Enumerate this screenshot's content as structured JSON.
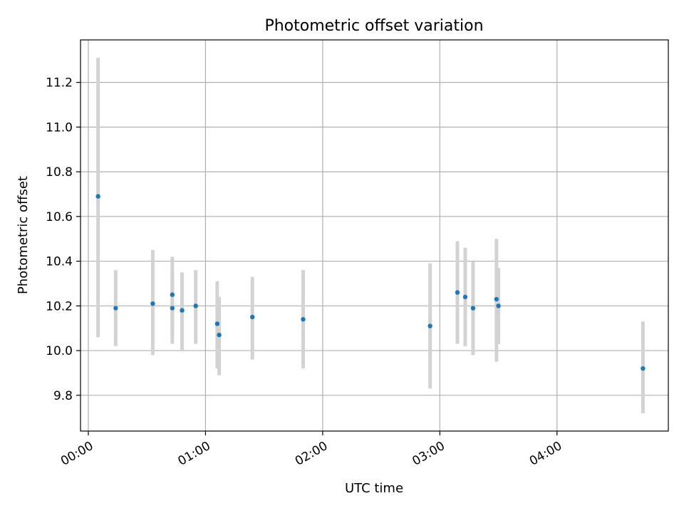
{
  "chart_data": {
    "type": "scatter",
    "title": "Photometric offset variation",
    "xlabel": "UTC time",
    "ylabel": "Photometric offset",
    "x_unit": "UTC hh:mm",
    "xlim": [
      "-00:04",
      "04:57"
    ],
    "ylim": [
      9.64,
      11.39
    ],
    "x_ticks": [
      "00:00",
      "01:00",
      "02:00",
      "03:00",
      "04:00"
    ],
    "y_ticks": [
      "9.8",
      "10.0",
      "10.2",
      "10.4",
      "10.6",
      "10.8",
      "11.0",
      "11.2"
    ],
    "grid": true,
    "marker_color": "#1f77b4",
    "errorbar_color": "#d3d3d3",
    "points": [
      {
        "x": "00:05",
        "y": 10.69,
        "ylow": 10.06,
        "yhigh": 11.31
      },
      {
        "x": "00:14",
        "y": 10.19,
        "ylow": 10.02,
        "yhigh": 10.36
      },
      {
        "x": "00:33",
        "y": 10.21,
        "ylow": 9.98,
        "yhigh": 10.45
      },
      {
        "x": "00:43",
        "y": 10.25,
        "ylow": 10.07,
        "yhigh": 10.42
      },
      {
        "x": "00:43",
        "y": 10.19,
        "ylow": 10.03,
        "yhigh": 10.34
      },
      {
        "x": "00:48",
        "y": 10.18,
        "ylow": 10.0,
        "yhigh": 10.35
      },
      {
        "x": "00:55",
        "y": 10.2,
        "ylow": 10.03,
        "yhigh": 10.36
      },
      {
        "x": "01:06",
        "y": 10.12,
        "ylow": 9.92,
        "yhigh": 10.31
      },
      {
        "x": "01:07",
        "y": 10.07,
        "ylow": 9.89,
        "yhigh": 10.24
      },
      {
        "x": "01:24",
        "y": 10.15,
        "ylow": 9.96,
        "yhigh": 10.33
      },
      {
        "x": "01:50",
        "y": 10.14,
        "ylow": 9.92,
        "yhigh": 10.36
      },
      {
        "x": "02:55",
        "y": 10.11,
        "ylow": 9.83,
        "yhigh": 10.39
      },
      {
        "x": "03:09",
        "y": 10.26,
        "ylow": 10.03,
        "yhigh": 10.49
      },
      {
        "x": "03:13",
        "y": 10.24,
        "ylow": 10.02,
        "yhigh": 10.46
      },
      {
        "x": "03:17",
        "y": 10.19,
        "ylow": 9.98,
        "yhigh": 10.4
      },
      {
        "x": "03:29",
        "y": 10.23,
        "ylow": 9.95,
        "yhigh": 10.5
      },
      {
        "x": "03:30",
        "y": 10.2,
        "ylow": 10.03,
        "yhigh": 10.37
      },
      {
        "x": "04:44",
        "y": 9.92,
        "ylow": 9.72,
        "yhigh": 10.13
      }
    ]
  }
}
